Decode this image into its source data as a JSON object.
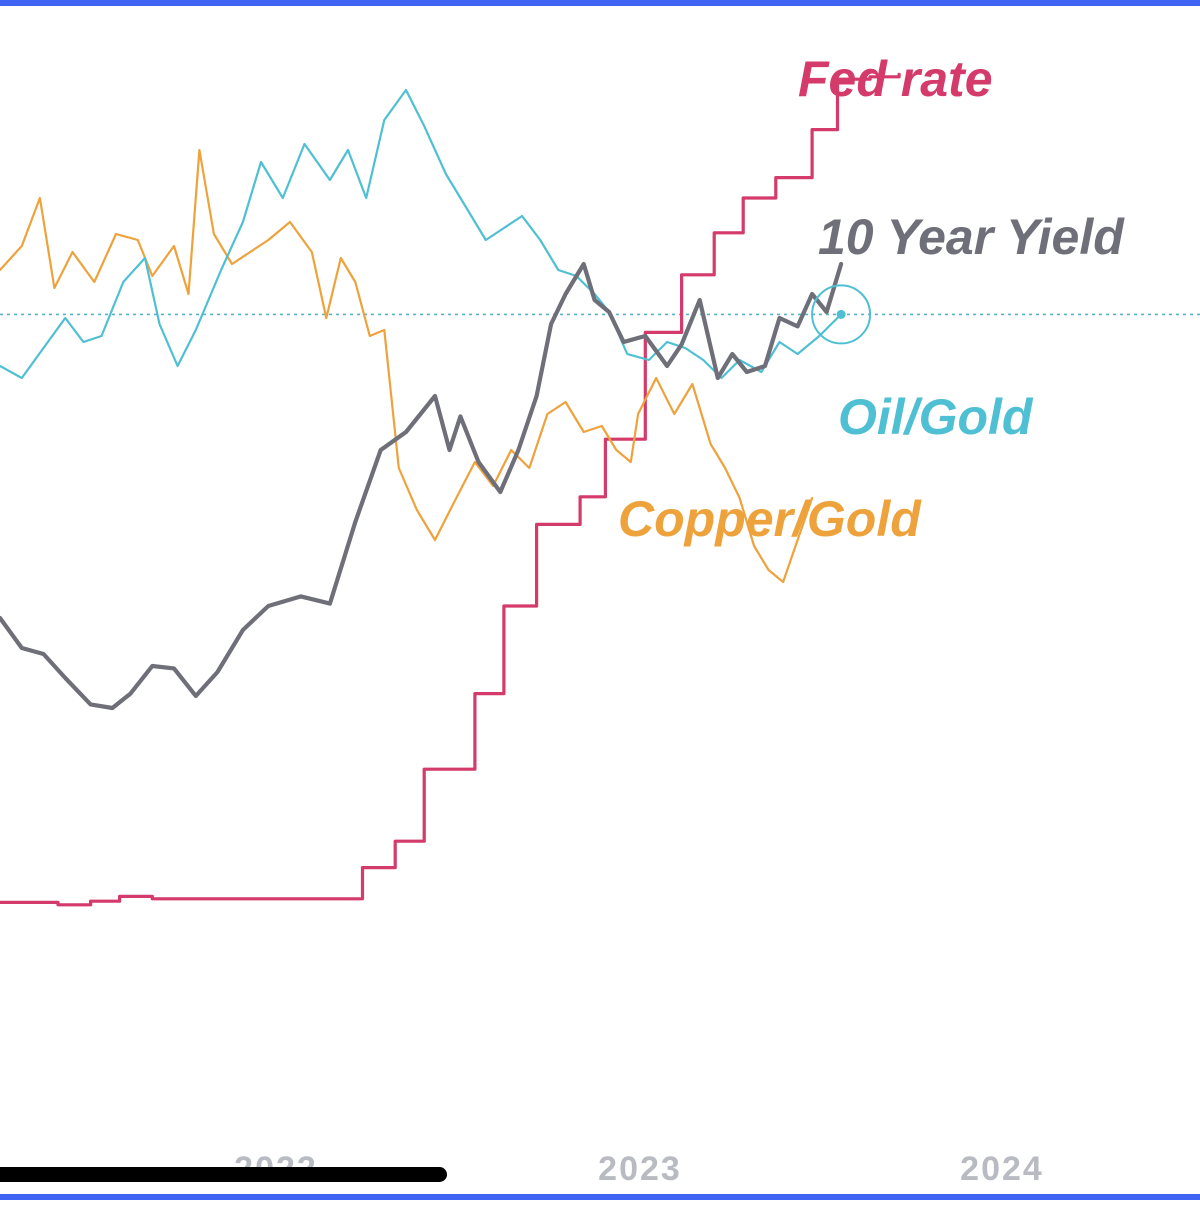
{
  "colors": {
    "fed_rate": "#d43a6a",
    "ten_year_yield": "#6e6f78",
    "oil_gold": "#4fbfd3",
    "copper_gold": "#eea23c",
    "axis_tick": "#b9bbc2",
    "frame_border": "#3f63f2",
    "scrollbar": "#000000"
  },
  "chart_data": {
    "type": "line",
    "title": "",
    "xlabel": "",
    "ylabel": "",
    "x_ticks": [
      "2022",
      "2023",
      "2024"
    ],
    "x_tick_positions_year": [
      2022.0,
      2023.0,
      2024.0
    ],
    "xlim": [
      2021.24,
      2024.55
    ],
    "y_scale": "normalized 0-100 (each series plotted on its own hidden axis)",
    "ylim": [
      0,
      100
    ],
    "crosshair_y": 74.3,
    "grid": false,
    "legend": "inline labels at line ends",
    "series": [
      {
        "name": "Fed rate",
        "label_color_key": "fed_rate",
        "step": true,
        "points": [
          [
            2021.24,
            25.3
          ],
          [
            2021.4,
            25.1
          ],
          [
            2021.49,
            25.4
          ],
          [
            2021.57,
            25.8
          ],
          [
            2021.66,
            25.6
          ],
          [
            2022.15,
            25.6
          ],
          [
            2022.24,
            28.2
          ],
          [
            2022.33,
            30.4
          ],
          [
            2022.41,
            36.4
          ],
          [
            2022.55,
            42.7
          ],
          [
            2022.63,
            50.0
          ],
          [
            2022.72,
            56.8
          ],
          [
            2022.84,
            59.1
          ],
          [
            2022.91,
            63.9
          ],
          [
            2023.02,
            72.8
          ],
          [
            2023.12,
            77.6
          ],
          [
            2023.21,
            81.1
          ],
          [
            2023.29,
            84.0
          ],
          [
            2023.38,
            85.7
          ],
          [
            2023.48,
            89.7
          ],
          [
            2023.55,
            93.9
          ],
          [
            2023.64,
            94.1
          ],
          [
            2023.72,
            94.3
          ]
        ]
      },
      {
        "name": "10 Year Yield",
        "label_color_key": "ten_year_yield",
        "points": [
          [
            2021.24,
            49.0
          ],
          [
            2021.3,
            46.5
          ],
          [
            2021.36,
            46.0
          ],
          [
            2021.42,
            44.0
          ],
          [
            2021.49,
            41.8
          ],
          [
            2021.55,
            41.5
          ],
          [
            2021.6,
            42.7
          ],
          [
            2021.66,
            45.0
          ],
          [
            2021.72,
            44.8
          ],
          [
            2021.78,
            42.5
          ],
          [
            2021.84,
            44.5
          ],
          [
            2021.91,
            48.0
          ],
          [
            2021.98,
            50.0
          ],
          [
            2022.07,
            50.8
          ],
          [
            2022.15,
            50.2
          ],
          [
            2022.22,
            57.0
          ],
          [
            2022.29,
            63.0
          ],
          [
            2022.36,
            64.5
          ],
          [
            2022.44,
            67.5
          ],
          [
            2022.48,
            63.0
          ],
          [
            2022.51,
            65.8
          ],
          [
            2022.56,
            62.0
          ],
          [
            2022.62,
            59.5
          ],
          [
            2022.67,
            63.0
          ],
          [
            2022.72,
            67.5
          ],
          [
            2022.76,
            73.5
          ],
          [
            2022.8,
            76.0
          ],
          [
            2022.85,
            78.5
          ],
          [
            2022.88,
            75.5
          ],
          [
            2022.92,
            74.5
          ],
          [
            2022.96,
            72.0
          ],
          [
            2023.02,
            72.5
          ],
          [
            2023.08,
            70.0
          ],
          [
            2023.12,
            71.8
          ],
          [
            2023.17,
            75.5
          ],
          [
            2023.22,
            69.0
          ],
          [
            2023.26,
            71.0
          ],
          [
            2023.3,
            69.5
          ],
          [
            2023.35,
            70.0
          ],
          [
            2023.39,
            74.0
          ],
          [
            2023.44,
            73.3
          ],
          [
            2023.48,
            76.0
          ],
          [
            2023.52,
            74.5
          ],
          [
            2023.56,
            78.5
          ]
        ]
      },
      {
        "name": "Oil/Gold",
        "label_color_key": "oil_gold",
        "points": [
          [
            2021.24,
            70.0
          ],
          [
            2021.3,
            69.0
          ],
          [
            2021.36,
            71.5
          ],
          [
            2021.42,
            74.0
          ],
          [
            2021.47,
            72.0
          ],
          [
            2021.52,
            72.5
          ],
          [
            2021.58,
            77.0
          ],
          [
            2021.64,
            79.0
          ],
          [
            2021.68,
            73.5
          ],
          [
            2021.73,
            70.0
          ],
          [
            2021.78,
            73.0
          ],
          [
            2021.85,
            78.0
          ],
          [
            2021.91,
            82.0
          ],
          [
            2021.96,
            87.0
          ],
          [
            2022.02,
            84.0
          ],
          [
            2022.08,
            88.5
          ],
          [
            2022.15,
            85.5
          ],
          [
            2022.2,
            88.0
          ],
          [
            2022.25,
            84.0
          ],
          [
            2022.3,
            90.5
          ],
          [
            2022.36,
            93.0
          ],
          [
            2022.41,
            90.0
          ],
          [
            2022.47,
            86.0
          ],
          [
            2022.53,
            83.0
          ],
          [
            2022.58,
            80.5
          ],
          [
            2022.63,
            81.5
          ],
          [
            2022.68,
            82.5
          ],
          [
            2022.73,
            80.5
          ],
          [
            2022.78,
            78.0
          ],
          [
            2022.83,
            77.5
          ],
          [
            2022.88,
            76.0
          ],
          [
            2022.92,
            74.5
          ],
          [
            2022.97,
            71.0
          ],
          [
            2023.03,
            70.5
          ],
          [
            2023.08,
            72.0
          ],
          [
            2023.13,
            71.5
          ],
          [
            2023.18,
            70.5
          ],
          [
            2023.23,
            69.0
          ],
          [
            2023.28,
            70.5
          ],
          [
            2023.34,
            69.5
          ],
          [
            2023.39,
            72.0
          ],
          [
            2023.44,
            71.0
          ],
          [
            2023.5,
            72.5
          ],
          [
            2023.56,
            74.3
          ]
        ]
      },
      {
        "name": "Copper/Gold",
        "label_color_key": "copper_gold",
        "points": [
          [
            2021.24,
            78.0
          ],
          [
            2021.3,
            80.0
          ],
          [
            2021.35,
            84.0
          ],
          [
            2021.39,
            76.5
          ],
          [
            2021.44,
            79.5
          ],
          [
            2021.5,
            77.0
          ],
          [
            2021.56,
            81.0
          ],
          [
            2021.62,
            80.5
          ],
          [
            2021.66,
            77.5
          ],
          [
            2021.72,
            80.0
          ],
          [
            2021.76,
            76.0
          ],
          [
            2021.79,
            88.0
          ],
          [
            2021.83,
            81.0
          ],
          [
            2021.88,
            78.5
          ],
          [
            2021.93,
            79.5
          ],
          [
            2021.98,
            80.5
          ],
          [
            2022.04,
            82.0
          ],
          [
            2022.1,
            79.5
          ],
          [
            2022.14,
            74.0
          ],
          [
            2022.18,
            79.0
          ],
          [
            2022.22,
            77.0
          ],
          [
            2022.26,
            72.5
          ],
          [
            2022.3,
            73.0
          ],
          [
            2022.34,
            61.5
          ],
          [
            2022.39,
            58.0
          ],
          [
            2022.44,
            55.5
          ],
          [
            2022.49,
            58.5
          ],
          [
            2022.55,
            62.0
          ],
          [
            2022.6,
            60.0
          ],
          [
            2022.65,
            63.0
          ],
          [
            2022.7,
            61.5
          ],
          [
            2022.75,
            66.0
          ],
          [
            2022.8,
            67.0
          ],
          [
            2022.85,
            64.5
          ],
          [
            2022.9,
            65.0
          ],
          [
            2022.94,
            63.0
          ],
          [
            2022.98,
            62.0
          ],
          [
            2023.0,
            66.0
          ],
          [
            2023.05,
            69.0
          ],
          [
            2023.1,
            66.0
          ],
          [
            2023.15,
            68.5
          ],
          [
            2023.2,
            63.5
          ],
          [
            2023.24,
            61.5
          ],
          [
            2023.28,
            59.0
          ],
          [
            2023.32,
            55.0
          ],
          [
            2023.36,
            53.0
          ],
          [
            2023.4,
            52.0
          ],
          [
            2023.44,
            55.5
          ],
          [
            2023.48,
            59.0
          ]
        ]
      }
    ],
    "annotation": {
      "type": "circle-marker",
      "series": "Oil/Gold",
      "at": [
        2023.56,
        74.3
      ]
    }
  },
  "labels": {
    "fed_rate": "Fed rate",
    "ten_year_yield": "10 Year Yield",
    "oil_gold": "Oil/Gold",
    "copper_gold": "Copper/Gold"
  }
}
